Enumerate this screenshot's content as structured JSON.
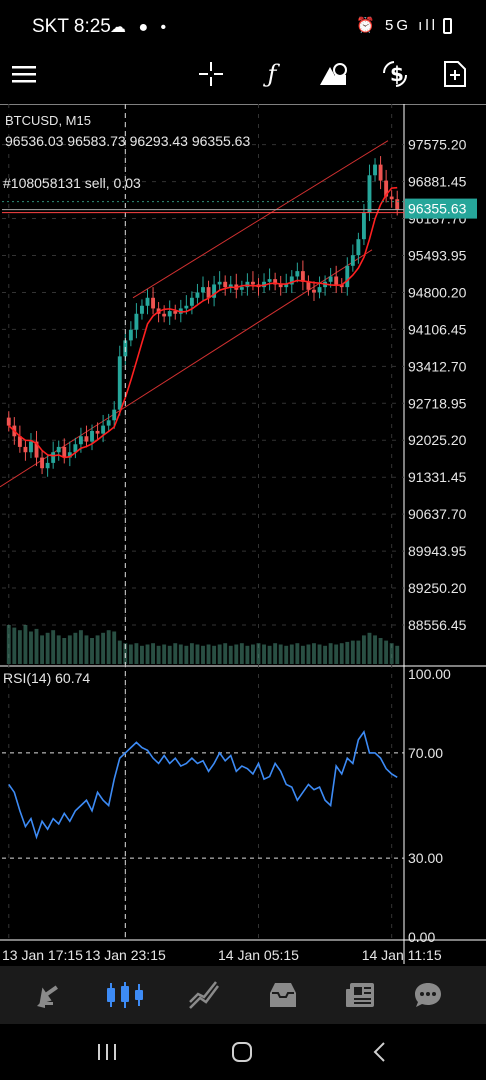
{
  "status_bar": {
    "carrier_time": "SKT 8:25",
    "left_icons": "☁ ● •",
    "right_icons": "⏰ 5G ıll"
  },
  "toolbar": {
    "icons": [
      "menu-icon",
      "crosshair-icon",
      "function-icon",
      "objects-icon",
      "trade-icon",
      "new-order-icon"
    ]
  },
  "chart": {
    "symbol_timeframe": "BTCUSD, M15",
    "ohlc": "96536.03 96583.73 96293.43 96355.63",
    "order_line_label": "#108058131 sell, 0.03",
    "current_price": "96355.63",
    "price_axis_labels": [
      "97575.20",
      "96881.45",
      "96187.70",
      "95493.95",
      "94800.20",
      "94106.45",
      "93412.70",
      "92718.95",
      "92025.20",
      "91331.45",
      "90637.70",
      "89943.95",
      "89250.20",
      "88556.45"
    ],
    "rsi_label": "RSI(14) 60.74",
    "rsi_axis_labels": [
      "100.00",
      "70.00",
      "30.00",
      "0.00"
    ],
    "time_labels": [
      "13 Jan 17:15",
      "13 Jan 23:15",
      "14 Jan 05:15",
      "14 Jan 11:15"
    ],
    "colors": {
      "bull": "#26a69a",
      "bear": "#ef5350",
      "ma": "#ff2020",
      "rsi": "#3d8bf5",
      "price_tag": "#26a69a",
      "channel": "#d03030"
    }
  },
  "chart_data": {
    "type": "candlestick",
    "symbol": "BTCUSD",
    "timeframe": "M15",
    "price_ylim": [
      88200,
      98000
    ],
    "rsi_ylim": [
      0,
      100
    ],
    "rsi_levels": [
      70,
      30
    ],
    "last_price": 96355.63,
    "candles_close": [
      92300,
      92100,
      91900,
      91800,
      92000,
      91700,
      91500,
      91600,
      91800,
      91900,
      91700,
      91800,
      91950,
      92100,
      92000,
      92200,
      92150,
      92300,
      92400,
      92600,
      93600,
      93900,
      94100,
      94400,
      94550,
      94700,
      94500,
      94400,
      94350,
      94450,
      94400,
      94500,
      94550,
      94700,
      94800,
      94900,
      94700,
      94950,
      95000,
      94900,
      94950,
      94850,
      94900,
      95000,
      94950,
      94900,
      95000,
      95050,
      94950,
      94900,
      94950,
      95100,
      95200,
      95000,
      94850,
      94800,
      94900,
      95000,
      95100,
      94950,
      94900,
      95300,
      95500,
      95800,
      96300,
      97000,
      97200,
      96900,
      96600,
      96550,
      96355.63
    ],
    "rsi_values": [
      58,
      55,
      48,
      42,
      45,
      38,
      44,
      41,
      45,
      43,
      47,
      44,
      48,
      50,
      52,
      48,
      55,
      52,
      50,
      60,
      68,
      70,
      72,
      74,
      72,
      71,
      68,
      66,
      69,
      66,
      68,
      65,
      66,
      68,
      66,
      67,
      63,
      66,
      70,
      67,
      69,
      63,
      65,
      64,
      62,
      66,
      60,
      61,
      66,
      63,
      58,
      57,
      52,
      55,
      58,
      56,
      57,
      52,
      50,
      65,
      62,
      68,
      66,
      75,
      78,
      70,
      70,
      68,
      64,
      62,
      60.74
    ],
    "volume": [
      30,
      28,
      26,
      30,
      25,
      27,
      22,
      24,
      26,
      22,
      20,
      22,
      24,
      26,
      22,
      20,
      22,
      24,
      26,
      25,
      18,
      16,
      15,
      16,
      14,
      15,
      16,
      14,
      15,
      14,
      16,
      15,
      14,
      16,
      15,
      14,
      15,
      14,
      15,
      16,
      14,
      15,
      16,
      14,
      15,
      16,
      15,
      14,
      16,
      15,
      14,
      15,
      16,
      14,
      15,
      16,
      15,
      14,
      16,
      15,
      16,
      17,
      18,
      18,
      22,
      24,
      22,
      20,
      18,
      16,
      14
    ]
  },
  "bottom_nav": {
    "items": [
      "quotes-icon",
      "chart-icon",
      "trade-icon",
      "history-icon",
      "news-icon",
      "messages-icon"
    ]
  }
}
